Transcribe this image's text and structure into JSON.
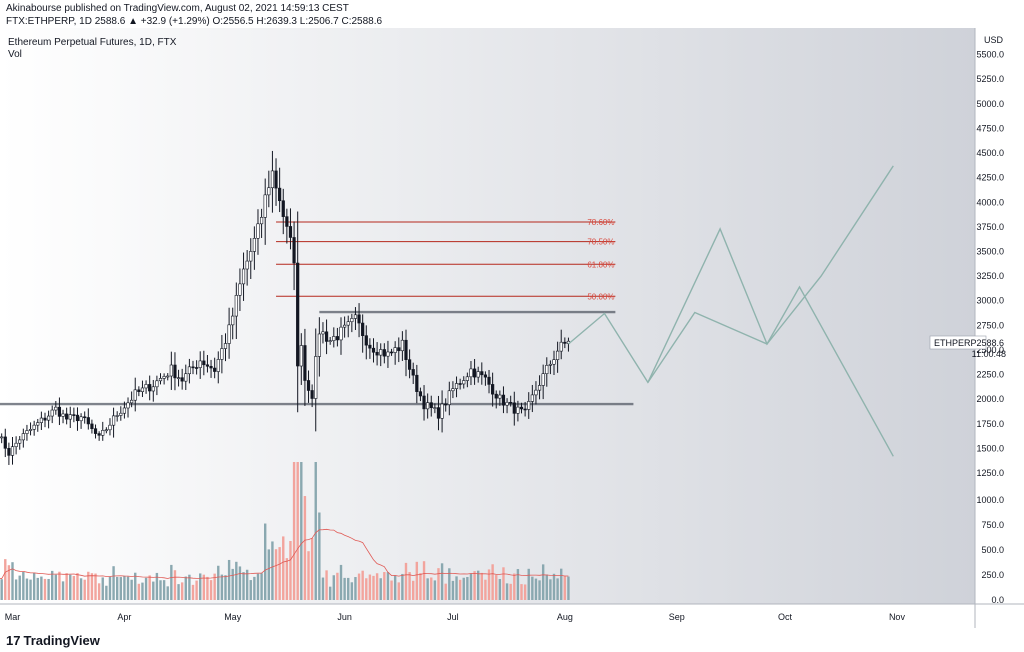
{
  "header": {
    "published": "Akinabourse published on TradingView.com, August 02, 2021 14:59:13 CEST",
    "ohlc": "FTX:ETHPERP, 1D 2588.6 ▲ +32.9 (+1.29%) O:2556.5 H:2639.3 L:2506.7 C:2588.6"
  },
  "legend": {
    "symbol": "Ethereum Perpetual Futures, 1D, FTX",
    "volume": "Vol"
  },
  "footer": {
    "brand": "TradingView"
  },
  "colors": {
    "background_start": "#ffffff",
    "background_end": "#cfd2d9",
    "candle": "#131722",
    "fib_line": "#b5281c",
    "fib_label": "#d9473b",
    "support_line": "#555b66",
    "projection": "#8fb3ad",
    "volume_up": "#8aa8b0",
    "volume_down": "#f2a49d",
    "volume_ma": "#e05a55"
  },
  "chart_data": {
    "type": "candlestick",
    "title": "Ethereum Perpetual Futures, 1D, FTX",
    "currency_label": "USD",
    "ylim": [
      1250,
      5750
    ],
    "y_ticks": [
      "5500.0",
      "5250.0",
      "5000.0",
      "4750.0",
      "4500.0",
      "4250.0",
      "4000.0",
      "3750.0",
      "3500.0",
      "3250.0",
      "3000.0",
      "2750.0",
      "2500.0",
      "2250.0",
      "2000.0",
      "1750.0",
      "1500.0",
      "1250.0"
    ],
    "volume_ticks": [
      "1000.0",
      "750.0",
      "500.0",
      "250.0",
      "0.0"
    ],
    "volume_scale_max": 1000,
    "x_ticks": [
      {
        "label": "Mar",
        "date": "2021-03-01"
      },
      {
        "label": "Apr",
        "date": "2021-04-01"
      },
      {
        "label": "May",
        "date": "2021-05-01"
      },
      {
        "label": "Jun",
        "date": "2021-06-01"
      },
      {
        "label": "Jul",
        "date": "2021-07-01"
      },
      {
        "label": "Aug",
        "date": "2021-08-01"
      },
      {
        "label": "Sep",
        "date": "2021-09-01"
      },
      {
        "label": "Oct",
        "date": "2021-10-01"
      },
      {
        "label": "Nov",
        "date": "2021-11-01"
      }
    ],
    "price_path": [
      [
        "2021-02-25",
        1650
      ],
      [
        "2021-02-28",
        1450
      ],
      [
        "2021-03-03",
        1600
      ],
      [
        "2021-03-08",
        1750
      ],
      [
        "2021-03-13",
        1900
      ],
      [
        "2021-03-16",
        1800
      ],
      [
        "2021-03-20",
        1820
      ],
      [
        "2021-03-25",
        1600
      ],
      [
        "2021-03-30",
        1850
      ],
      [
        "2021-04-04",
        2050
      ],
      [
        "2021-04-09",
        2150
      ],
      [
        "2021-04-14",
        2300
      ],
      [
        "2021-04-17",
        2200
      ],
      [
        "2021-04-22",
        2400
      ],
      [
        "2021-04-26",
        2300
      ],
      [
        "2021-04-30",
        2700
      ],
      [
        "2021-05-04",
        3300
      ],
      [
        "2021-05-08",
        3700
      ],
      [
        "2021-05-11",
        4200
      ],
      [
        "2021-05-12",
        4300
      ],
      [
        "2021-05-14",
        4050
      ],
      [
        "2021-05-16",
        3700
      ],
      [
        "2021-05-18",
        3450
      ],
      [
        "2021-05-19",
        2300
      ],
      [
        "2021-05-20",
        2600
      ],
      [
        "2021-05-21",
        2200
      ],
      [
        "2021-05-23",
        2050
      ],
      [
        "2021-05-25",
        2700
      ],
      [
        "2021-05-28",
        2600
      ],
      [
        "2021-06-01",
        2700
      ],
      [
        "2021-06-04",
        2800
      ],
      [
        "2021-06-08",
        2550
      ],
      [
        "2021-06-13",
        2450
      ],
      [
        "2021-06-17",
        2550
      ],
      [
        "2021-06-20",
        2200
      ],
      [
        "2021-06-23",
        1950
      ],
      [
        "2021-06-27",
        1850
      ],
      [
        "2021-07-01",
        2100
      ],
      [
        "2021-07-06",
        2300
      ],
      [
        "2021-07-10",
        2200
      ],
      [
        "2021-07-14",
        2000
      ],
      [
        "2021-07-18",
        1900
      ],
      [
        "2021-07-21",
        1850
      ],
      [
        "2021-07-24",
        2100
      ],
      [
        "2021-07-27",
        2300
      ],
      [
        "2021-07-30",
        2500
      ],
      [
        "2021-08-02",
        2588.6
      ]
    ],
    "last_price": "2588.6",
    "last_price_ticker": "ETHPERP",
    "countdown": "11:00:48",
    "fibonacci_levels": [
      {
        "label": "78.60%",
        "price": 3800
      },
      {
        "label": "70.50%",
        "price": 3600
      },
      {
        "label": "61.80%",
        "price": 3370
      },
      {
        "label": "50.00%",
        "price": 3045
      }
    ],
    "horizontal_lines": [
      {
        "price": 2885,
        "from": "2021-05-25",
        "to": "2021-08-15"
      },
      {
        "price": 1950,
        "from": "2021-02-25",
        "to": "2021-08-20"
      }
    ],
    "projection_path_1": [
      [
        "2021-08-02",
        2560
      ],
      [
        "2021-08-12",
        2870
      ],
      [
        "2021-08-24",
        2170
      ],
      [
        "2021-09-06",
        2880
      ],
      [
        "2021-09-26",
        2560
      ],
      [
        "2021-10-05",
        3140
      ],
      [
        "2021-10-31",
        1420
      ]
    ],
    "projection_path_2": [
      [
        "2021-08-24",
        2170
      ],
      [
        "2021-09-13",
        3730
      ],
      [
        "2021-09-26",
        2560
      ],
      [
        "2021-10-11",
        3250
      ],
      [
        "2021-10-31",
        4370
      ]
    ]
  }
}
